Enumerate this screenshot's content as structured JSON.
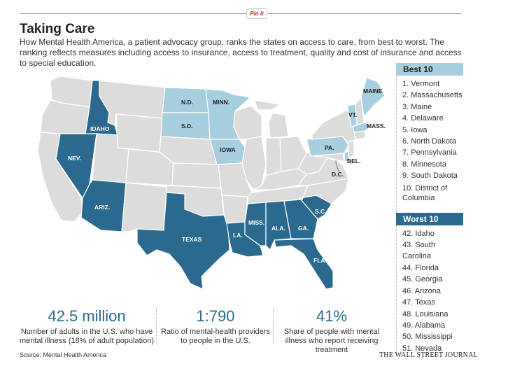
{
  "pin_label": "Pin it",
  "title": "Taking Care",
  "description": "How Mental Health America, a patient advocacy group, ranks the states on access to care, from best to worst. The ranking reflects measures including access to insurance, access to treatment, quality and cost of insurance and access to special education.",
  "colors": {
    "best": "#a7cfe0",
    "worst": "#2b6a8e",
    "other": "#dcdcdc",
    "border": "#ffffff",
    "accent": "#2b6a8e"
  },
  "map": {
    "labels": {
      "nd": "N.D.",
      "minn": "MINN.",
      "sd": "S.D.",
      "iowa": "IOWA",
      "maine": "MAINE",
      "vt": "VT.",
      "mass": "MASS.",
      "pa": "PA.",
      "del": "DEL.",
      "dc": "D.C.",
      "idaho": "IDAHO",
      "nev": "NEV.",
      "ariz": "ARIZ.",
      "texas": "TEXAS",
      "la": "LA.",
      "miss": "MISS.",
      "ala": "ALA.",
      "ga": "GA.",
      "sc": "S.C.",
      "fla": "FLA."
    }
  },
  "best": {
    "header": "Best 10",
    "items": [
      "1. Vermont",
      "2. Massachusetts",
      "3. Maine",
      "4. Delaware",
      "5. Iowa",
      "6. North Dakota",
      "7. Pennsylvania",
      "8. Minnesota",
      "9. South Dakota",
      "10. District of Columbia"
    ]
  },
  "worst": {
    "header": "Worst 10",
    "items": [
      "42. Idaho",
      "43. South Carolina",
      "44. Florida",
      "45. Georgia",
      "46. Arizona",
      "47. Texas",
      "48. Louisiana",
      "49. Alabama",
      "50. Mississippi",
      "51. Nevada"
    ]
  },
  "stats": [
    {
      "value": "42.5 million",
      "text": "Number of adults in the U.S. who have mental illness (18% of adult population)"
    },
    {
      "value": "1:790",
      "text": "Ratio of mental-health providers to people in the U.S."
    },
    {
      "value": "41%",
      "text": "Share of people with mental illness who report receiving treatment"
    }
  ],
  "source": "Source: Mental Health America",
  "brand": "THE WALL STREET JOURNAL"
}
